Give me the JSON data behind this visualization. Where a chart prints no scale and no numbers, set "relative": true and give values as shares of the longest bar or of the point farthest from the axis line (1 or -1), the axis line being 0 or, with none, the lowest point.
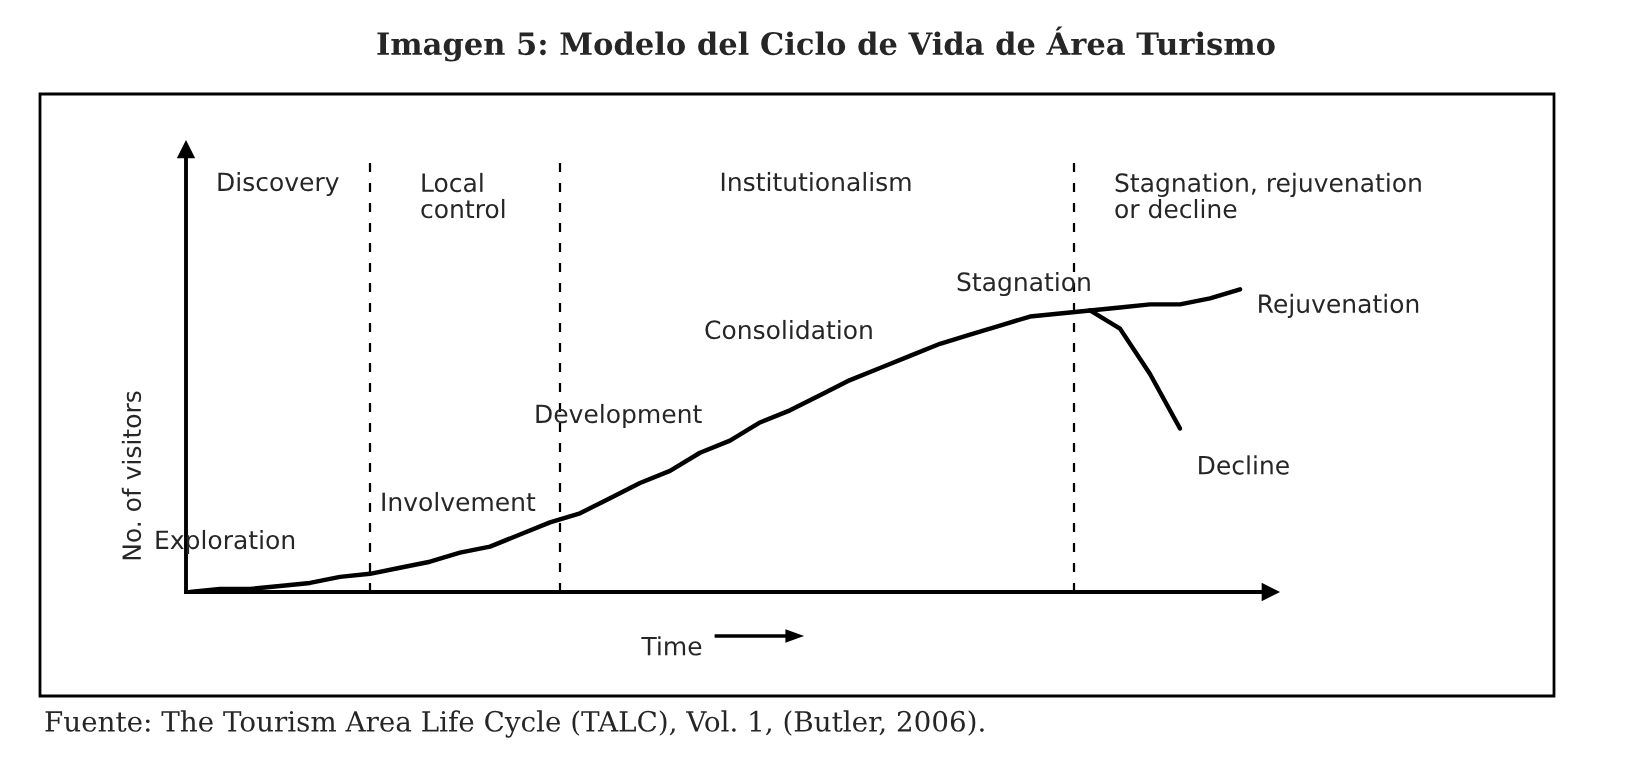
{
  "chart_data": {
    "type": "line",
    "relative": true,
    "title": "Imagen 5: Modelo del Ciclo de Vida de Área Turismo",
    "xlabel": "Time",
    "ylabel": "No. of visitors",
    "categories": [
      null,
      null,
      null,
      null,
      null,
      null,
      null,
      null,
      null,
      null,
      null,
      null,
      null,
      null,
      null,
      null,
      null,
      null,
      null,
      null,
      null,
      null,
      null,
      null,
      null,
      null,
      null,
      null,
      null,
      null,
      null,
      null,
      null,
      null,
      null,
      null
    ],
    "series": [
      {
        "name": "Rejuvenation",
        "color": "#000000",
        "values": [
          0,
          0.01,
          0.01,
          0.02,
          0.03,
          0.05,
          0.06,
          0.08,
          0.1,
          0.13,
          0.15,
          0.19,
          0.23,
          0.26,
          0.31,
          0.36,
          0.4,
          0.46,
          0.5,
          0.56,
          0.6,
          0.65,
          0.7,
          0.74,
          0.78,
          0.82,
          0.85,
          0.88,
          0.91,
          0.92,
          0.93,
          0.94,
          0.95,
          0.95,
          0.97,
          1.0
        ]
      },
      {
        "name": "Decline",
        "color": "#000000",
        "values": [
          null,
          null,
          null,
          null,
          null,
          null,
          null,
          null,
          null,
          null,
          null,
          null,
          null,
          null,
          null,
          null,
          null,
          null,
          null,
          null,
          null,
          null,
          null,
          null,
          null,
          null,
          null,
          null,
          null,
          null,
          0.93,
          0.87,
          0.72,
          0.54,
          null,
          null
        ]
      }
    ],
    "annotations": [
      "Discovery",
      "Local\ncontrol",
      "Institutionalism",
      "Stagnation, rejuvenation\nor decline",
      "Exploration",
      "Involvement",
      "Development",
      "Consolidation",
      "Stagnation",
      "Fuente: The Tourism Area Life Cycle (TALC), Vol. 1, (Butler, 2006)."
    ],
    "line_style": "solid",
    "marker": "none",
    "legend": false
  }
}
